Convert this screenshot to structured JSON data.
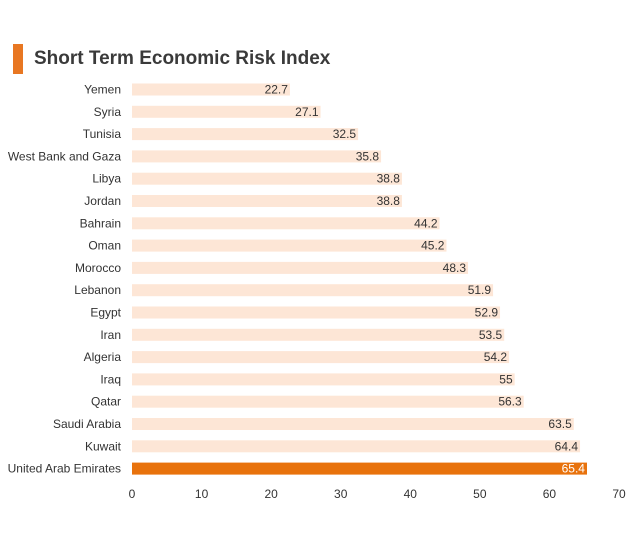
{
  "title": "Short Term Economic Risk Index",
  "colors": {
    "accent": "#e87722",
    "bar": "#fde6d6",
    "highlight": "#e8720c",
    "text": "#333333"
  },
  "chart_data": {
    "type": "bar",
    "orientation": "horizontal",
    "title": "Short Term Economic Risk Index",
    "categories": [
      "Yemen",
      "Syria",
      "Tunisia",
      "West Bank and Gaza",
      "Libya",
      "Jordan",
      "Bahrain",
      "Oman",
      "Morocco",
      "Lebanon",
      "Egypt",
      "Iran",
      "Algeria",
      "Iraq",
      "Qatar",
      "Saudi Arabia",
      "Kuwait",
      "United Arab Emirates"
    ],
    "values": [
      22.7,
      27.1,
      32.5,
      35.8,
      38.8,
      38.8,
      44.2,
      45.2,
      48.3,
      51.9,
      52.9,
      53.5,
      54.2,
      55,
      56.3,
      63.5,
      64.4,
      65.4
    ],
    "value_labels": [
      "22.7",
      "27.1",
      "32.5",
      "35.8",
      "38.8",
      "38.8",
      "44.2",
      "45.2",
      "48.3",
      "51.9",
      "52.9",
      "53.5",
      "54.2",
      "55",
      "56.3",
      "63.5",
      "64.4",
      "65.4"
    ],
    "highlight_category": "United Arab Emirates",
    "xlim": [
      0,
      70
    ],
    "xticks": [
      0,
      10,
      20,
      30,
      40,
      50,
      60,
      70
    ],
    "xtick_labels": [
      "0",
      "10",
      "20",
      "30",
      "40",
      "50",
      "60",
      "70"
    ],
    "xlabel": "",
    "ylabel": "",
    "grid": false,
    "legend": "none"
  }
}
